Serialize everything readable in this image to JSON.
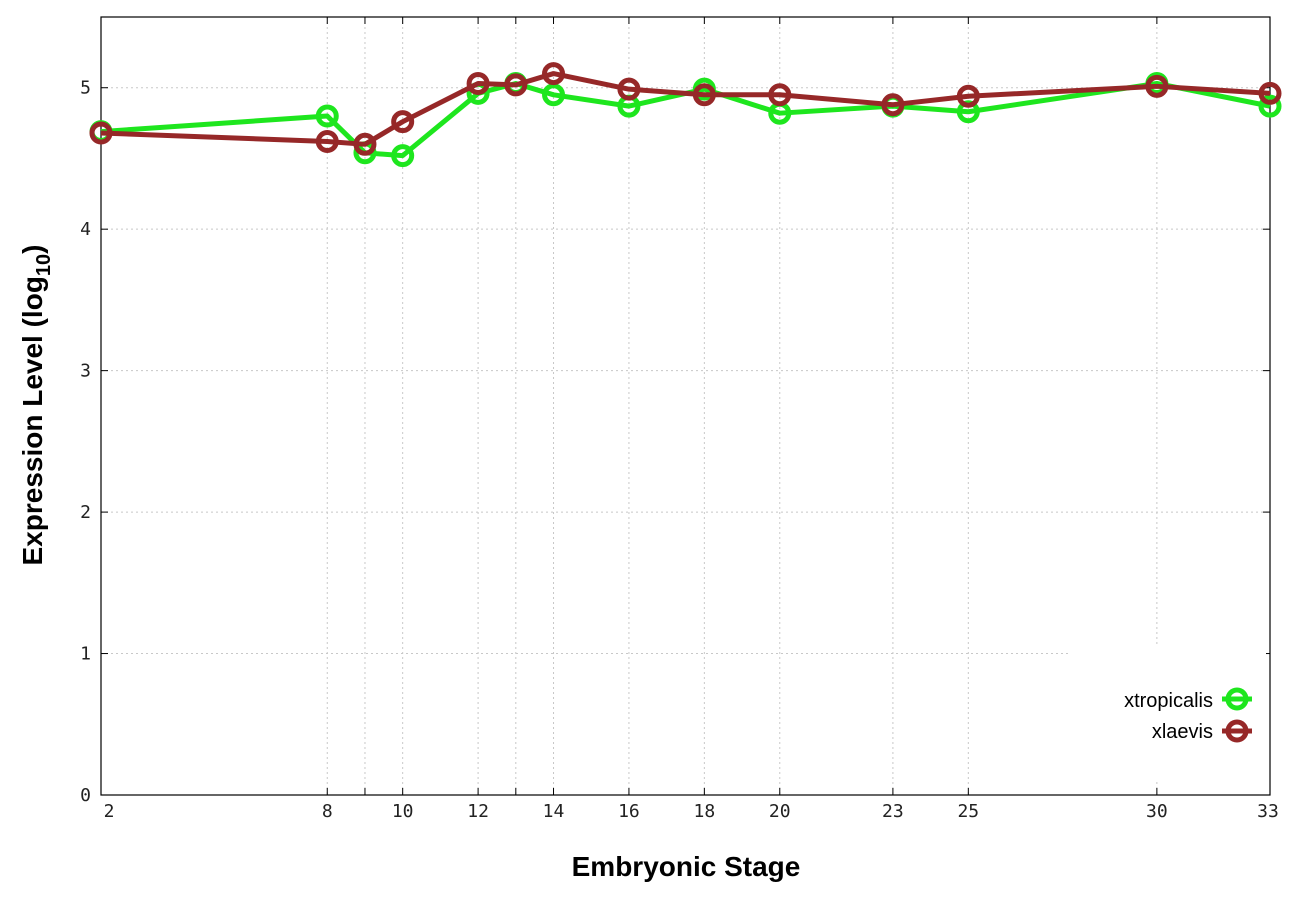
{
  "chart_data": {
    "type": "line",
    "xlabel": "Embryonic Stage",
    "ylabel_main": "Expression Level (log",
    "ylabel_sub": "10",
    "ylabel_close": ")",
    "x_ticks": [
      2,
      8,
      9,
      10,
      12,
      13,
      14,
      16,
      18,
      20,
      23,
      25,
      30,
      33
    ],
    "x_tick_labels": [
      "2",
      "8",
      "10",
      "12",
      "14",
      "16",
      "18",
      "20",
      "23",
      "25",
      "30",
      "33"
    ],
    "x_tick_label_values": [
      2,
      8,
      10,
      12,
      14,
      16,
      18,
      20,
      23,
      25,
      30,
      33
    ],
    "x_categories": [
      2,
      8,
      9,
      10,
      12,
      13,
      14,
      16,
      18,
      20,
      23,
      25,
      30,
      33
    ],
    "xlim": [
      2,
      33
    ],
    "y_ticks": [
      0,
      1,
      2,
      3,
      4,
      5
    ],
    "y_tick_labels": [
      "0",
      "1",
      "2",
      "3",
      "4",
      "5"
    ],
    "ylim": [
      0,
      5.5
    ],
    "grid": true,
    "legend_position": "bottom-right",
    "series": [
      {
        "name": "xtropicalis",
        "color": "#1ee61e",
        "x": [
          2,
          8,
          9,
          10,
          12,
          13,
          14,
          16,
          18,
          20,
          23,
          25,
          30,
          33
        ],
        "y": [
          4.69,
          4.8,
          4.54,
          4.52,
          4.96,
          5.03,
          4.95,
          4.87,
          4.99,
          4.82,
          4.87,
          4.83,
          5.03,
          4.87
        ]
      },
      {
        "name": "xlaevis",
        "color": "#962828",
        "x": [
          2,
          8,
          9,
          10,
          12,
          13,
          14,
          16,
          18,
          20,
          23,
          25,
          30,
          33
        ],
        "y": [
          4.68,
          4.62,
          4.6,
          4.76,
          5.03,
          5.02,
          5.1,
          4.99,
          4.95,
          4.95,
          4.88,
          4.94,
          5.01,
          4.96
        ]
      }
    ]
  }
}
